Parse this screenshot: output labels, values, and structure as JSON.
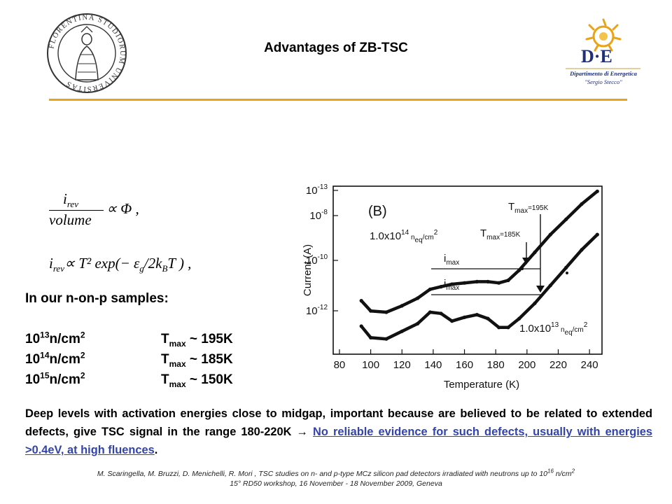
{
  "slide": {
    "title": "Advantages of ZB-TSC",
    "seal_text": "FLORENTINA STUDIORUM UNIVERSITAS",
    "logo": {
      "mark": "D·E",
      "line1": "Dipartimento di Energetica",
      "line2": "\"Sergio Stecco\""
    },
    "formulas": {
      "f1_num": "i",
      "f1_num_sub": "rev",
      "f1_den": "volume",
      "f1_rhs": "∝ Φ ,",
      "f2_lhs": "i",
      "f2_lhs_sub": "rev",
      "f2_rhs": "∝ T² exp(− ε",
      "f2_eps_sub": "g",
      "f2_tail": "/2k",
      "f2_k_sub": "B",
      "f2_end": "T ) ,"
    },
    "samples": {
      "heading": "In our  n-on-p samples:",
      "rows": [
        {
          "base": "10",
          "exp": "13",
          "unit": "n/cm",
          "unit_exp": "2",
          "t": "T",
          "t_sub": "max",
          "val": " ~ 195K"
        },
        {
          "base": "10",
          "exp": "14",
          "unit": "n/cm",
          "unit_exp": "2",
          "t": "T",
          "t_sub": "max",
          "val": " ~ 185K"
        },
        {
          "base": "10",
          "exp": "15",
          "unit": "n/cm",
          "unit_exp": "2",
          "t": "T",
          "t_sub": "max",
          "val": " ~ 150K"
        }
      ]
    },
    "paragraph": {
      "text": "Deep levels with activation energies close to midgap, important because are believed to be related to extended defects, give TSC signal in the range 180-220K  → ",
      "link": "No reliable evidence for such defects, usually with energies  >0.4eV, at high fluences",
      "end": "."
    },
    "reference": {
      "line1": "M. Scaringella, M. Bruzzi, D. Menichelli, R. Mori , TSC studies on n- and p-type MCz silicon pad detectors irradiated with neutrons up to 10",
      "line1_sup": "16",
      "line1_tail": " n/cm",
      "line1_sup2": "2",
      "line2": "15° RD50 workshop, 16 November - 18 November 2009, Geneva"
    }
  },
  "chart_data": {
    "type": "line",
    "panel_label": "(B)",
    "xlabel": "Temperature (K)",
    "ylabel": "Current (A)",
    "x_ticks": [
      "80",
      "100",
      "120",
      "140",
      "160",
      "180",
      "200",
      "220",
      "240"
    ],
    "y_ticks": [
      {
        "base": "10",
        "exp": "-13"
      },
      {
        "base": "10",
        "exp": "-8"
      },
      {
        "base": "10",
        "exp": "-10"
      },
      {
        "base": "10",
        "exp": "-12"
      }
    ],
    "annotations": {
      "upper_fluence": "1.0x10",
      "upper_fluence_exp": "14",
      "upper_fluence_tail": " n",
      "upper_fluence_sub": "eq",
      "upper_fluence_unit": "/cm",
      "upper_fluence_unit_exp": "2",
      "lower_fluence": "1.0x10",
      "lower_fluence_exp": "13",
      "lower_fluence_tail": " n",
      "lower_fluence_sub": "eq",
      "lower_fluence_unit": "/cm",
      "lower_fluence_unit_exp": "2",
      "tmax1": "T",
      "tmax1_sub": "max",
      "tmax1_val": "=195K",
      "tmax2": "T",
      "tmax2_sub": "max",
      "tmax2_val": "=185K",
      "imax_upper": "i",
      "imax_upper_sub": "max",
      "imax_lower": "i",
      "imax_lower_sub": "max"
    },
    "series": [
      {
        "name": "1.0x10^14 neq/cm^2",
        "x": [
          94,
          100,
          110,
          120,
          130,
          138,
          145,
          152,
          160,
          168,
          175,
          182,
          188,
          195,
          205,
          215,
          225,
          235,
          245
        ],
        "y": [
          -10.9,
          -11.3,
          -11.35,
          -11.1,
          -10.8,
          -10.45,
          -10.35,
          -10.25,
          -10.2,
          -10.15,
          -10.15,
          -10.2,
          -10.1,
          -9.7,
          -9.0,
          -8.3,
          -7.7,
          -7.1,
          -6.6
        ]
      },
      {
        "name": "1.0x10^13 neq/cm^2",
        "x": [
          94,
          100,
          110,
          120,
          130,
          138,
          145,
          152,
          160,
          168,
          175,
          182,
          188,
          195,
          205,
          215,
          225,
          235,
          245
        ],
        "y": [
          -11.9,
          -12.35,
          -12.4,
          -12.1,
          -11.8,
          -11.35,
          -11.4,
          -11.7,
          -11.55,
          -11.45,
          -11.6,
          -11.95,
          -11.95,
          -11.6,
          -11.0,
          -10.3,
          -9.6,
          -8.9,
          -8.3
        ]
      }
    ]
  }
}
